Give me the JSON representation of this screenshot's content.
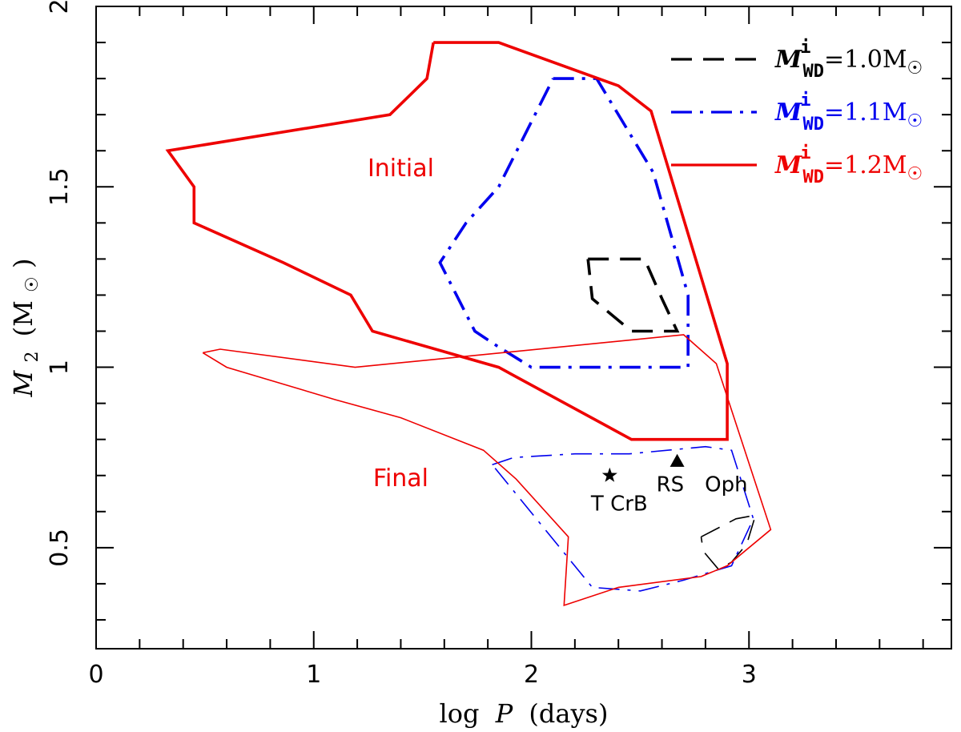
{
  "chart_data": {
    "type": "line",
    "xlabel_prefix": "log",
    "xlabel_var": "P",
    "xlabel_unit": "(days)",
    "ylabel_var": "M",
    "ylabel_sub": "2",
    "ylabel_unit_open": "(M",
    "ylabel_unit_close": ")",
    "xlim": [
      0,
      3.93
    ],
    "ylim": [
      0.22,
      2.0
    ],
    "x_ticks": [
      0,
      1,
      2,
      3
    ],
    "y_ticks": [
      0.5,
      1,
      1.5,
      2
    ],
    "x_minor_step": 0.2,
    "y_minor_step": 0.1,
    "grid": false,
    "legend_position": "top-right",
    "colors": {
      "wd10": "#000000",
      "wd11": "#0000ee",
      "wd12": "#ee0000"
    },
    "series": [
      {
        "key": "wd10",
        "legend_value": "=1.0M",
        "style": "dashed",
        "initial": [
          [
            2.26,
            1.3
          ],
          [
            2.52,
            1.3
          ],
          [
            2.6,
            1.19
          ],
          [
            2.67,
            1.1
          ],
          [
            2.46,
            1.1
          ],
          [
            2.28,
            1.19
          ],
          [
            2.26,
            1.3
          ]
        ],
        "final": [
          [
            2.78,
            0.53
          ],
          [
            2.94,
            0.58
          ],
          [
            3.03,
            0.59
          ],
          [
            2.99,
            0.51
          ],
          [
            2.92,
            0.46
          ],
          [
            2.86,
            0.44
          ],
          [
            2.79,
            0.49
          ],
          [
            2.78,
            0.53
          ]
        ]
      },
      {
        "key": "wd11",
        "legend_value": "=1.1M",
        "style": "dashdot",
        "initial": [
          [
            2.1,
            1.8
          ],
          [
            2.3,
            1.8
          ],
          [
            2.56,
            1.54
          ],
          [
            2.72,
            1.2
          ],
          [
            2.72,
            1.0
          ],
          [
            2.0,
            1.0
          ],
          [
            1.84,
            1.06
          ],
          [
            1.74,
            1.1
          ],
          [
            1.58,
            1.29
          ],
          [
            1.7,
            1.4
          ],
          [
            1.85,
            1.5
          ],
          [
            2.1,
            1.8
          ]
        ],
        "final": [
          [
            1.82,
            0.73
          ],
          [
            1.92,
            0.75
          ],
          [
            2.2,
            0.76
          ],
          [
            2.45,
            0.76
          ],
          [
            2.8,
            0.78
          ],
          [
            2.92,
            0.77
          ],
          [
            3.02,
            0.58
          ],
          [
            2.92,
            0.45
          ],
          [
            2.7,
            0.41
          ],
          [
            2.5,
            0.38
          ],
          [
            2.28,
            0.39
          ],
          [
            1.82,
            0.73
          ]
        ]
      },
      {
        "key": "wd12",
        "legend_value": "=1.2M",
        "style": "solid",
        "initial": [
          [
            1.55,
            1.9
          ],
          [
            1.85,
            1.9
          ],
          [
            2.4,
            1.78
          ],
          [
            2.55,
            1.71
          ],
          [
            2.9,
            1.01
          ],
          [
            2.9,
            0.8
          ],
          [
            2.46,
            0.8
          ],
          [
            1.85,
            1.0
          ],
          [
            1.27,
            1.1
          ],
          [
            1.17,
            1.2
          ],
          [
            0.86,
            1.29
          ],
          [
            0.45,
            1.4
          ],
          [
            0.45,
            1.5
          ],
          [
            0.33,
            1.6
          ],
          [
            1.35,
            1.7
          ],
          [
            1.52,
            1.8
          ],
          [
            1.55,
            1.9
          ]
        ],
        "final": [
          [
            0.49,
            1.04
          ],
          [
            0.57,
            1.05
          ],
          [
            1.19,
            1.0
          ],
          [
            2.7,
            1.09
          ],
          [
            2.85,
            1.01
          ],
          [
            3.1,
            0.55
          ],
          [
            2.9,
            0.45
          ],
          [
            2.78,
            0.42
          ],
          [
            2.4,
            0.39
          ],
          [
            2.15,
            0.34
          ],
          [
            2.17,
            0.53
          ],
          [
            1.93,
            0.69
          ],
          [
            1.78,
            0.77
          ],
          [
            1.4,
            0.86
          ],
          [
            1.1,
            0.91
          ],
          [
            0.6,
            1.0
          ],
          [
            0.49,
            1.04
          ]
        ]
      }
    ],
    "points": [
      {
        "label": "T CrB",
        "marker": "star",
        "x": 2.36,
        "y": 0.7
      },
      {
        "label": "RS Oph",
        "marker": "triangle",
        "x": 2.67,
        "y": 0.74
      }
    ],
    "annotations": [
      {
        "text": "Initial",
        "x": 1.4,
        "y": 1.53
      },
      {
        "text": "Final",
        "x": 1.4,
        "y": 0.67
      }
    ],
    "legend_var": "M",
    "legend_sup": "i",
    "legend_sub": "WD"
  }
}
